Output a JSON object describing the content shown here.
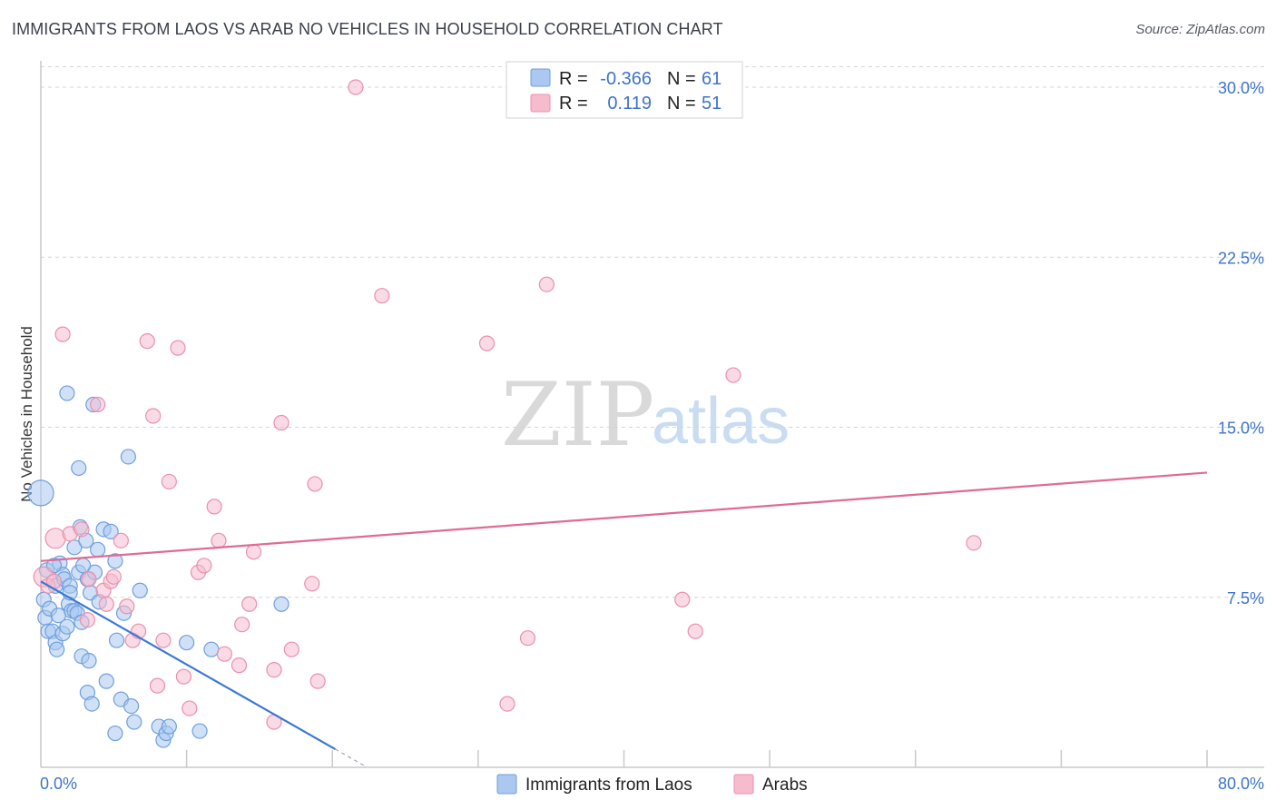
{
  "header": {
    "title": "IMMIGRANTS FROM LAOS VS ARAB NO VEHICLES IN HOUSEHOLD CORRELATION CHART",
    "source": "Source: ZipAtlas.com"
  },
  "watermark": {
    "zip": "ZIP",
    "atlas": "atlas"
  },
  "legend": {
    "rows": [
      {
        "r_label": "R =",
        "r_value": "-0.366",
        "n_label": "N =",
        "n_value": "61"
      },
      {
        "r_label": "R =",
        "r_value": "0.119",
        "n_label": "N =",
        "n_value": "51"
      }
    ]
  },
  "colors": {
    "laos_fill": "#aac8f0",
    "laos_stroke": "#6f9fdc",
    "laos_line": "#3a78d4",
    "arab_fill": "#f6bccd",
    "arab_stroke": "#ea90ad",
    "arab_line": "#e06b94",
    "grid": "#d5d5d5",
    "axis_text": "#3d74c9"
  },
  "chart_data": {
    "type": "scatter",
    "title": "IMMIGRANTS FROM LAOS VS ARAB NO VEHICLES IN HOUSEHOLD CORRELATION CHART",
    "xlabel": "",
    "ylabel": "No Vehicles in Household",
    "xlim": [
      0,
      80
    ],
    "ylim": [
      0,
      31
    ],
    "x_tick_labels": [
      "0.0%",
      "80.0%"
    ],
    "y_ticks": [
      7.5,
      15.0,
      22.5,
      30.0
    ],
    "y_tick_labels": [
      "7.5%",
      "15.0%",
      "22.5%",
      "30.0%"
    ],
    "series": [
      {
        "name": "Immigrants from Laos",
        "r": -0.366,
        "n": 61,
        "trend": {
          "x0": 0.0,
          "y0": 8.2,
          "x1": 20.2,
          "y1": 0.8,
          "dash_to_x": 22.3
        },
        "points": [
          [
            0.0,
            12.1,
            3
          ],
          [
            0.2,
            7.4,
            1
          ],
          [
            0.3,
            6.6,
            1
          ],
          [
            0.4,
            8.7,
            1
          ],
          [
            0.5,
            6.0,
            1
          ],
          [
            0.6,
            7.0,
            1
          ],
          [
            0.8,
            6.0,
            1
          ],
          [
            1.0,
            5.5,
            1
          ],
          [
            1.0,
            8.0,
            1
          ],
          [
            1.1,
            5.2,
            1
          ],
          [
            1.2,
            6.7,
            1
          ],
          [
            1.3,
            9.0,
            1
          ],
          [
            1.5,
            5.9,
            1
          ],
          [
            1.5,
            8.5,
            1
          ],
          [
            1.6,
            8.3,
            1
          ],
          [
            1.8,
            6.2,
            1
          ],
          [
            1.8,
            16.5,
            1
          ],
          [
            1.9,
            7.2,
            1
          ],
          [
            2.0,
            8.0,
            1
          ],
          [
            2.0,
            7.7,
            1
          ],
          [
            2.1,
            6.9,
            1
          ],
          [
            2.3,
            9.7,
            1
          ],
          [
            2.3,
            6.9,
            1
          ],
          [
            2.5,
            6.8,
            1
          ],
          [
            2.6,
            8.6,
            1
          ],
          [
            2.6,
            13.2,
            1
          ],
          [
            2.7,
            10.6,
            1
          ],
          [
            2.8,
            6.4,
            1
          ],
          [
            2.8,
            4.9,
            1
          ],
          [
            3.1,
            10.0,
            1
          ],
          [
            3.2,
            8.3,
            1
          ],
          [
            3.2,
            3.3,
            1
          ],
          [
            3.3,
            4.7,
            1
          ],
          [
            3.4,
            7.7,
            1
          ],
          [
            3.5,
            2.8,
            1
          ],
          [
            3.6,
            16.0,
            1
          ],
          [
            3.7,
            8.6,
            1
          ],
          [
            3.9,
            9.6,
            1
          ],
          [
            4.0,
            7.3,
            1
          ],
          [
            4.3,
            10.5,
            1
          ],
          [
            4.5,
            3.8,
            1
          ],
          [
            4.8,
            10.4,
            1
          ],
          [
            5.1,
            9.1,
            1
          ],
          [
            5.1,
            1.5,
            1
          ],
          [
            5.2,
            5.6,
            1
          ],
          [
            5.5,
            3.0,
            1
          ],
          [
            5.7,
            6.8,
            1
          ],
          [
            6.0,
            13.7,
            1
          ],
          [
            6.2,
            2.7,
            1
          ],
          [
            6.4,
            2.0,
            1
          ],
          [
            6.8,
            7.8,
            1
          ],
          [
            8.1,
            1.8,
            1
          ],
          [
            8.4,
            1.2,
            1
          ],
          [
            8.6,
            1.5,
            1
          ],
          [
            8.8,
            1.8,
            1
          ],
          [
            10.0,
            5.5,
            1
          ],
          [
            10.9,
            1.6,
            1
          ],
          [
            11.7,
            5.2,
            1
          ],
          [
            16.5,
            7.2,
            1
          ],
          [
            0.9,
            8.9,
            1
          ],
          [
            2.9,
            8.9,
            1
          ]
        ]
      },
      {
        "name": "Arabs",
        "r": 0.119,
        "n": 51,
        "trend": {
          "x0": 0.0,
          "y0": 9.1,
          "x1": 80.0,
          "y1": 13.0
        },
        "points": [
          [
            0.2,
            8.4,
            2
          ],
          [
            0.5,
            8.0,
            1
          ],
          [
            0.9,
            8.2,
            1
          ],
          [
            1.0,
            10.1,
            2
          ],
          [
            1.5,
            19.1,
            1
          ],
          [
            2.0,
            10.3,
            1
          ],
          [
            2.8,
            10.5,
            1
          ],
          [
            3.2,
            6.5,
            1
          ],
          [
            3.3,
            8.3,
            1
          ],
          [
            3.9,
            16.0,
            1
          ],
          [
            4.3,
            7.8,
            1
          ],
          [
            4.5,
            7.2,
            1
          ],
          [
            4.8,
            8.2,
            1
          ],
          [
            5.0,
            8.4,
            1
          ],
          [
            5.5,
            10.0,
            1
          ],
          [
            5.9,
            7.1,
            1
          ],
          [
            6.3,
            5.6,
            1
          ],
          [
            6.7,
            6.0,
            1
          ],
          [
            7.3,
            18.8,
            1
          ],
          [
            7.7,
            15.5,
            1
          ],
          [
            8.0,
            3.6,
            1
          ],
          [
            8.4,
            5.6,
            1
          ],
          [
            8.8,
            12.6,
            1
          ],
          [
            9.4,
            18.5,
            1
          ],
          [
            9.8,
            4.0,
            1
          ],
          [
            10.2,
            2.6,
            1
          ],
          [
            10.8,
            8.6,
            1
          ],
          [
            11.2,
            8.9,
            1
          ],
          [
            11.9,
            11.5,
            1
          ],
          [
            12.2,
            10.0,
            1
          ],
          [
            12.6,
            5.0,
            1
          ],
          [
            13.6,
            4.5,
            1
          ],
          [
            13.8,
            6.3,
            1
          ],
          [
            14.3,
            7.2,
            1
          ],
          [
            14.6,
            9.5,
            1
          ],
          [
            16.0,
            4.3,
            1
          ],
          [
            16.0,
            2.0,
            1
          ],
          [
            16.5,
            15.2,
            1
          ],
          [
            17.2,
            5.2,
            1
          ],
          [
            18.6,
            8.1,
            1
          ],
          [
            18.8,
            12.5,
            1
          ],
          [
            19.0,
            3.8,
            1
          ],
          [
            21.6,
            30.0,
            1
          ],
          [
            23.4,
            20.8,
            1
          ],
          [
            30.6,
            18.7,
            1
          ],
          [
            32.0,
            2.8,
            1
          ],
          [
            33.4,
            5.7,
            1
          ],
          [
            34.7,
            21.3,
            1
          ],
          [
            44.0,
            7.4,
            1
          ],
          [
            44.9,
            6.0,
            1
          ],
          [
            47.5,
            17.3,
            1
          ],
          [
            64.0,
            9.9,
            1
          ]
        ]
      }
    ]
  },
  "bottom_legend": {
    "items": [
      {
        "label": "Immigrants from Laos"
      },
      {
        "label": "Arabs"
      }
    ]
  }
}
